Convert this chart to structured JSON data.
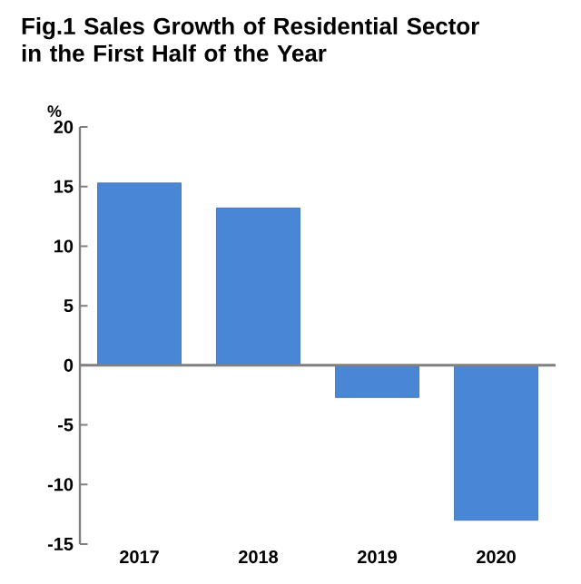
{
  "chart_data": {
    "type": "bar",
    "title": "Fig.1  Sales Growth of Residential Sector in the First Half of the Year",
    "ylabel": "%",
    "categories": [
      "2017",
      "2018",
      "2019",
      "2020"
    ],
    "values": [
      15.3,
      13.2,
      -2.7,
      -13.0
    ],
    "color": "#4a86d6",
    "ylim": [
      -15,
      20
    ],
    "yticks": [
      -15,
      -10,
      -5,
      0,
      5,
      10,
      15,
      20
    ]
  }
}
